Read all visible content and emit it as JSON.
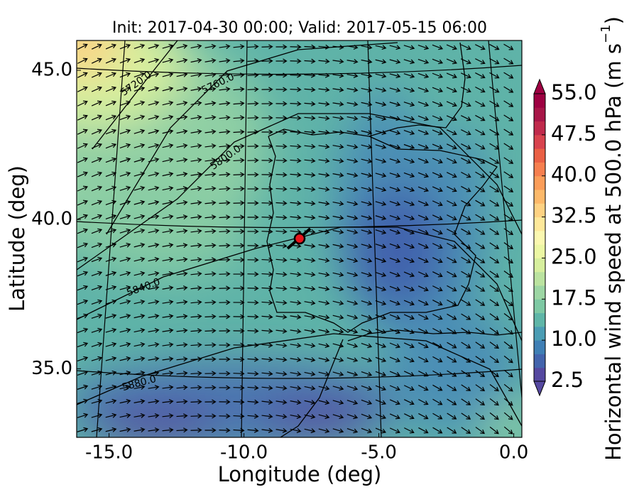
{
  "title": "Init: 2017-04-30 00:00; Valid: 2017-05-15 06:00",
  "map": {
    "xlabel": "Longitude (deg)",
    "ylabel": "Latitude (deg)",
    "xlim": [
      -16.2,
      0.3
    ],
    "ylim": [
      32.7,
      46.0
    ],
    "xticks": [
      {
        "value": -15,
        "label": "-15.0"
      },
      {
        "value": -10,
        "label": "-10.0"
      },
      {
        "value": -5,
        "label": "-5.0"
      },
      {
        "value": 0,
        "label": "0.0"
      }
    ],
    "yticks": [
      {
        "value": 35,
        "label": "35.0"
      },
      {
        "value": 40,
        "label": "40.0"
      },
      {
        "value": 45,
        "label": "45.0"
      }
    ],
    "contour_labels": [
      "5720.0",
      "5760.0",
      "5800.0",
      "5840.0",
      "5880.0"
    ]
  },
  "colorbar": {
    "label": [
      "Horizontal wind speed at 500.0 hPa (m s",
      "−1",
      ")"
    ],
    "lim": [
      2.5,
      55
    ],
    "ticks": [
      {
        "value": 2.5,
        "label": "2.5"
      },
      {
        "value": 10,
        "label": "10.0"
      },
      {
        "value": 17.5,
        "label": "17.5"
      },
      {
        "value": 25,
        "label": "25.0"
      },
      {
        "value": 32.5,
        "label": "32.5"
      },
      {
        "value": 40,
        "label": "40.0"
      },
      {
        "value": 47.5,
        "label": "47.5"
      },
      {
        "value": 55,
        "label": "55.0"
      }
    ],
    "colors": [
      "#5548a0",
      "#4364ad",
      "#3f7fb5",
      "#4b9db4",
      "#5fb6a8",
      "#7ec9a4",
      "#9dd6a4",
      "#bbe3a0",
      "#d7ef9e",
      "#ecf7a4",
      "#fbf8b0",
      "#fee89a",
      "#fed283",
      "#fdb96a",
      "#fb9d59",
      "#f67f4f",
      "#ea6045",
      "#d8434e",
      "#c02a4c",
      "#a81648",
      "#9e0142"
    ]
  }
}
